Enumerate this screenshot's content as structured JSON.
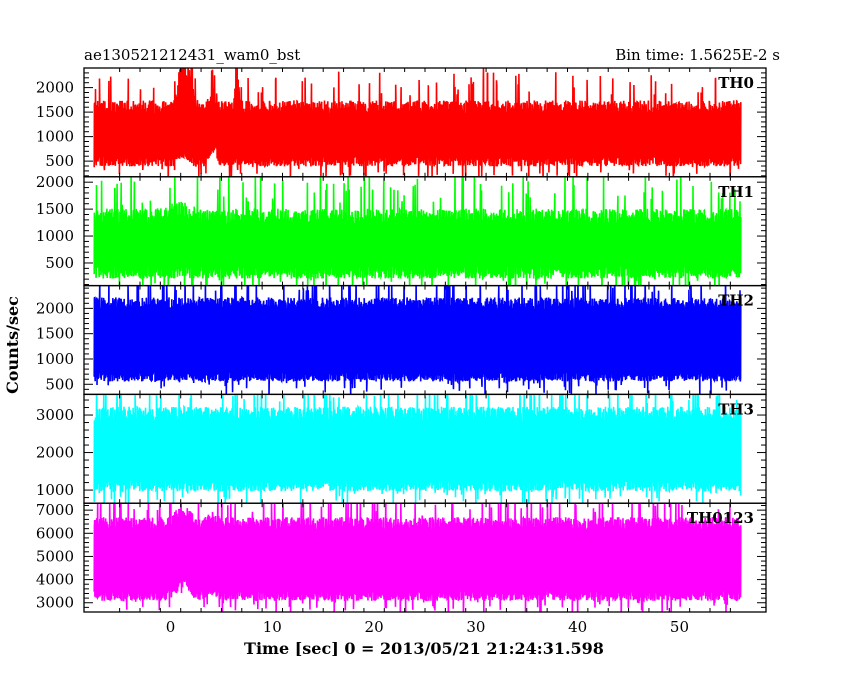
{
  "chart_data": {
    "type": "line",
    "title": "ae130521212431_wam0_bst",
    "bin_label": "Bin time: 1.5625E-2 s",
    "xlabel": "Time [sec] 0 = 2013/05/21 21:24:31.598",
    "ylabel": "Counts/sec",
    "xlim": [
      -8.5,
      58.5
    ],
    "x_ticks": [
      0,
      10,
      20,
      30,
      40,
      50
    ],
    "x_tick_labels": [
      "0",
      "10",
      "20",
      "30",
      "40",
      "50"
    ],
    "x_data_range": [
      -7.5,
      56.0
    ],
    "bin_time": 0.015625,
    "panels": [
      {
        "name": "TH0",
        "color": "#ff0000",
        "ylim": [
          180,
          2400
        ],
        "y_ticks": [
          500,
          1000,
          1500,
          2000
        ],
        "y_tick_labels": [
          "500",
          "1000",
          "1500",
          "2000"
        ],
        "baseline": 500,
        "upper": 1550,
        "noise": 180,
        "features": [
          {
            "t": 1.2,
            "width": 0.5,
            "upper_add": 1200,
            "lower_add": 150
          },
          {
            "t": 2.0,
            "width": 0.3,
            "upper_add": 600,
            "lower_add": 80
          },
          {
            "t": 4.2,
            "width": 0.4,
            "upper_add": 300,
            "lower_add": 350
          },
          {
            "t": 6.5,
            "width": 0.2,
            "upper_add": 900,
            "lower_add": 0
          }
        ]
      },
      {
        "name": "TH1",
        "color": "#00ff00",
        "ylim": [
          80,
          2100
        ],
        "y_ticks": [
          500,
          1000,
          1500,
          2000
        ],
        "y_tick_labels": [
          "500",
          "1000",
          "1500",
          "2000"
        ],
        "baseline": 330,
        "upper": 1300,
        "noise": 200,
        "features": [
          {
            "t": 1.0,
            "width": 1.5,
            "upper_add": 150,
            "lower_add": 0
          }
        ]
      },
      {
        "name": "TH2",
        "color": "#0000ff",
        "ylim": [
          300,
          2450
        ],
        "y_ticks": [
          500,
          1000,
          1500,
          2000
        ],
        "y_tick_labels": [
          "500",
          "1000",
          "1500",
          "2000"
        ],
        "baseline": 650,
        "upper": 2050,
        "noise": 160,
        "features": []
      },
      {
        "name": "TH3",
        "color": "#00ffff",
        "ylim": [
          650,
          3550
        ],
        "y_ticks": [
          1000,
          2000,
          3000
        ],
        "y_tick_labels": [
          "1000",
          "2000",
          "3000"
        ],
        "baseline": 1120,
        "upper": 2950,
        "noise": 260,
        "features": []
      },
      {
        "name": "TH0123",
        "color": "#ff00ff",
        "ylim": [
          2600,
          7300
        ],
        "y_ticks": [
          3000,
          4000,
          5000,
          6000,
          7000
        ],
        "y_tick_labels": [
          "3000",
          "4000",
          "5000",
          "6000",
          "7000"
        ],
        "baseline": 3300,
        "upper": 6300,
        "noise": 380,
        "features": [
          {
            "t": 1.2,
            "width": 1.0,
            "upper_add": 600,
            "lower_add": 700
          },
          {
            "t": 4.0,
            "width": 0.6,
            "upper_add": 300,
            "lower_add": 400
          }
        ]
      }
    ]
  }
}
